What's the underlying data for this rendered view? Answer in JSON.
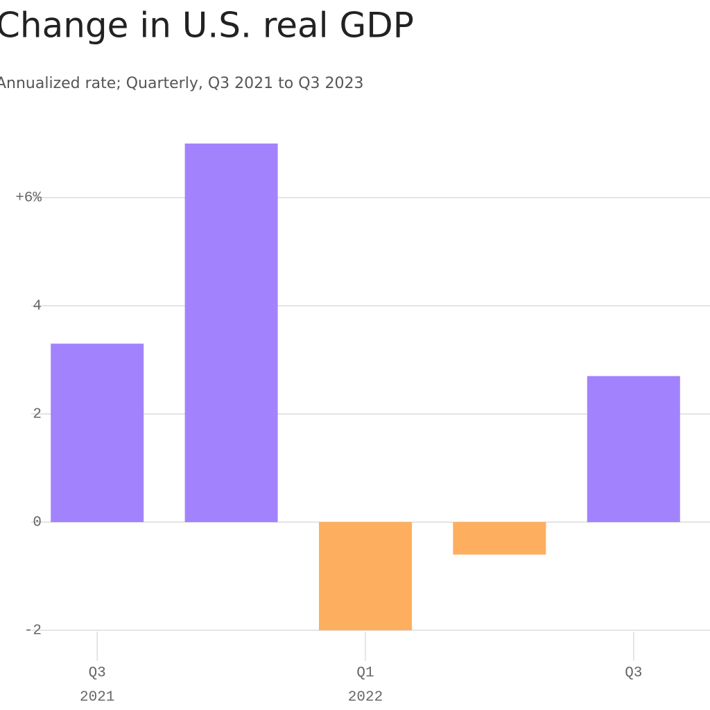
{
  "chart_data": {
    "type": "bar",
    "title": "Change in U.S. real GDP",
    "subtitle": "Annualized rate; Quarterly, Q3 2021 to Q3 2023",
    "categories": [
      "Q3",
      null,
      "Q1",
      null,
      "Q3"
    ],
    "category_years": [
      "2021",
      null,
      "2022",
      null,
      null
    ],
    "values": [
      3.3,
      7.0,
      -2.0,
      -0.6,
      2.7
    ],
    "colors": [
      "#a283fd",
      "#a283fd",
      "#fdae5f",
      "#fdae5f",
      "#a283fd"
    ],
    "ylim": [
      -2,
      7.5
    ],
    "yticks": [
      {
        "value": 6,
        "label": "+6%"
      },
      4,
      2,
      0,
      -2
    ],
    "grid": true
  }
}
